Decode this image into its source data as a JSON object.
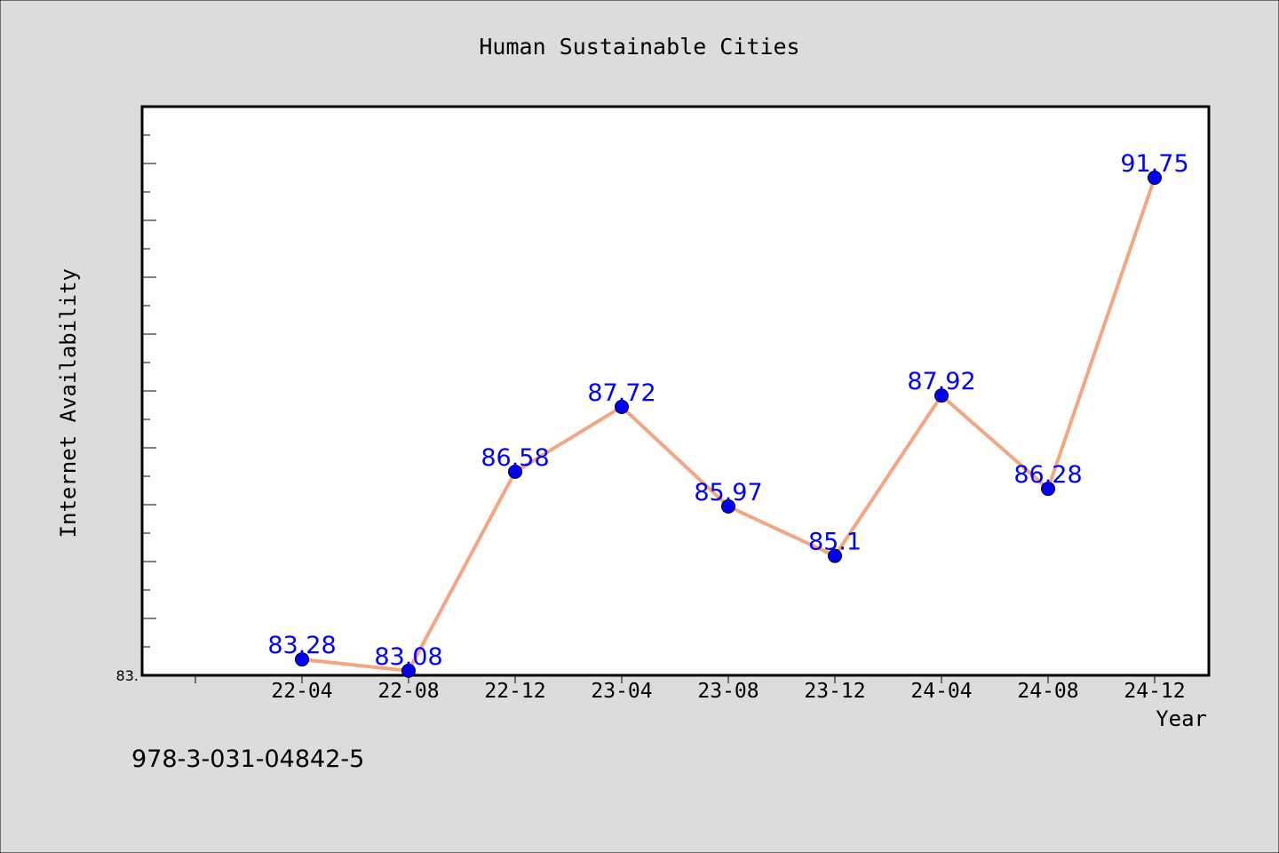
{
  "chart_data": {
    "type": "line",
    "title": "Human Sustainable Cities",
    "xlabel": "Year",
    "ylabel": "Internet Availability",
    "categories": [
      "22-04",
      "22-08",
      "22-12",
      "23-04",
      "23-08",
      "23-12",
      "24-04",
      "24-08",
      "24-12"
    ],
    "series": [
      {
        "values": [
          83.28,
          83.08,
          86.58,
          87.72,
          85.97,
          85.1,
          87.92,
          86.28,
          91.75
        ],
        "data_labels": [
          "83.28",
          "83.08",
          "86.58",
          "87.72",
          "85.97",
          "85.1",
          "87.92",
          "86.28",
          "91.75"
        ]
      }
    ],
    "ylim": [
      83.0,
      93.0
    ],
    "y_tick_labels": [
      "83."
    ],
    "grid": false,
    "legend": "none",
    "colors": {
      "background": "#dcdcdc",
      "plot_background": "#ffffff",
      "line": "#f4a582",
      "marker": "#0000ff",
      "data_label": "#0000ff",
      "text": "#000000"
    }
  },
  "footer": {
    "isbn": "978-3-031-04842-5"
  }
}
